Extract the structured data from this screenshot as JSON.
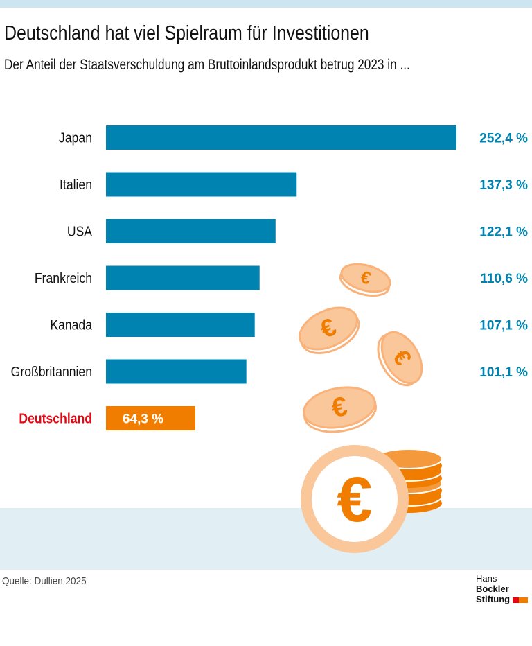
{
  "title": "Deutschland hat viel Spielraum für Investitionen",
  "subtitle": "Der Anteil der Staatsverschuldung am Bruttoinlandsprodukt betrug 2023 in ...",
  "source": "Quelle: Dullien 2025",
  "logo": {
    "line1a": "Hans",
    "line1b": "Böckler",
    "line2": "Stiftung"
  },
  "colors": {
    "bar": "#0083b0",
    "highlight": "#f07d00",
    "highlight_label": "#e30613",
    "coin": "#f9c79a"
  },
  "chart_data": {
    "type": "bar",
    "orientation": "horizontal",
    "categories": [
      "Japan",
      "Italien",
      "USA",
      "Frankreich",
      "Kanada",
      "Großbritannien",
      "Deutschland"
    ],
    "values": [
      252.4,
      137.3,
      122.1,
      110.6,
      107.1,
      101.1,
      64.3
    ],
    "labels": [
      "252,4 %",
      "137,3 %",
      "122,1 %",
      "110,6 %",
      "107,1 %",
      "101,1 %",
      "64,3 %"
    ],
    "highlight": "Deutschland",
    "xlim": [
      0,
      252.4
    ],
    "grid": false
  }
}
